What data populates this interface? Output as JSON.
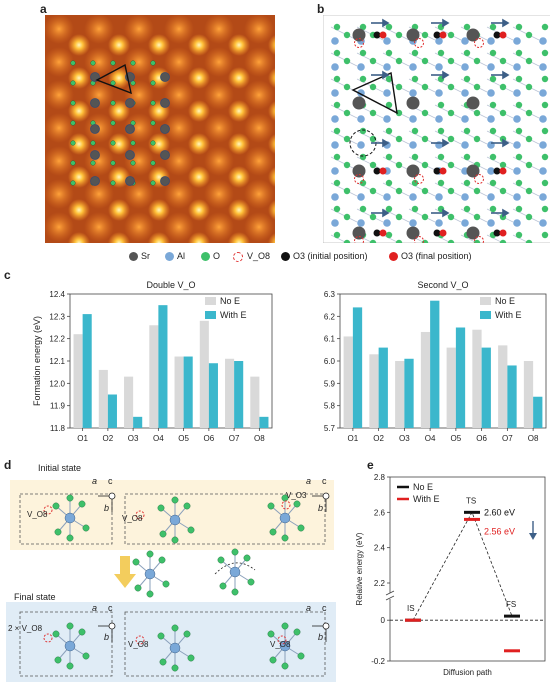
{
  "panels": {
    "a": "a",
    "b": "b",
    "c": "c",
    "d": "d",
    "e": "e"
  },
  "legend": {
    "items": [
      {
        "label": "Sr",
        "color": "#555555"
      },
      {
        "label": "Al",
        "color": "#7aa8d8"
      },
      {
        "label": "O",
        "color": "#3ec06a"
      },
      {
        "label": "V_O8",
        "color": "#e03030"
      },
      {
        "label": "O3 (initial position)",
        "color": "#111111"
      },
      {
        "label": "O3 (final position)",
        "color": "#e02020"
      }
    ]
  },
  "chart_data": [
    {
      "type": "bar",
      "title": "Double V_O",
      "ylabel": "Formation energy (eV)",
      "categories": [
        "O1",
        "O2",
        "O3",
        "O4",
        "O5",
        "O6",
        "O7",
        "O8"
      ],
      "ylim": [
        11.8,
        12.4
      ],
      "yticks": [
        "11.8",
        "11.9",
        "12.0",
        "12.1",
        "12.2",
        "12.3",
        "12.4"
      ],
      "series": [
        {
          "name": "No E",
          "color": "#d9d9d9",
          "values": [
            12.22,
            12.06,
            12.03,
            12.26,
            12.12,
            12.28,
            12.11,
            12.03
          ]
        },
        {
          "name": "With E",
          "color": "#3bb7cc",
          "values": [
            12.31,
            11.95,
            11.85,
            12.35,
            12.12,
            12.09,
            12.1,
            11.85
          ]
        }
      ]
    },
    {
      "type": "bar",
      "title": "Second V_O",
      "categories": [
        "O1",
        "O2",
        "O3",
        "O4",
        "O5",
        "O6",
        "O7",
        "O8"
      ],
      "ylim": [
        5.7,
        6.3
      ],
      "yticks": [
        "5.7",
        "5.8",
        "5.9",
        "6.0",
        "6.1",
        "6.2",
        "6.3"
      ],
      "series": [
        {
          "name": "No E",
          "color": "#d9d9d9",
          "values": [
            6.11,
            6.03,
            6.0,
            6.13,
            6.06,
            6.14,
            6.07,
            6.0
          ]
        },
        {
          "name": "With E",
          "color": "#3bb7cc",
          "values": [
            6.24,
            6.06,
            6.01,
            6.27,
            6.15,
            6.06,
            5.98,
            5.84
          ]
        }
      ]
    },
    {
      "type": "line",
      "ylabel": "Relative energy (eV)",
      "xlabel": "Diffusion path",
      "ylim": [
        -0.2,
        2.8
      ],
      "yticks": [
        "-0.2",
        "0",
        "2.2",
        "2.4",
        "2.6",
        "2.8"
      ],
      "states": [
        "IS",
        "TS",
        "FS"
      ],
      "series": [
        {
          "name": "No E",
          "color": "#111111",
          "values": [
            0.0,
            2.6,
            0.02
          ]
        },
        {
          "name": "With E",
          "color": "#e02020",
          "values": [
            0.0,
            2.56,
            -0.15
          ]
        }
      ],
      "annotations": [
        "2.60 eV",
        "2.56 eV"
      ]
    }
  ],
  "panel_d": {
    "initial_state": "Initial state",
    "final_state": "Final state",
    "axis_a": "a",
    "axis_b": "b",
    "axis_c": "c",
    "v_o8": "V_O8",
    "v_o3": "V_O3",
    "two_v_o8": "2 × V_O8"
  }
}
